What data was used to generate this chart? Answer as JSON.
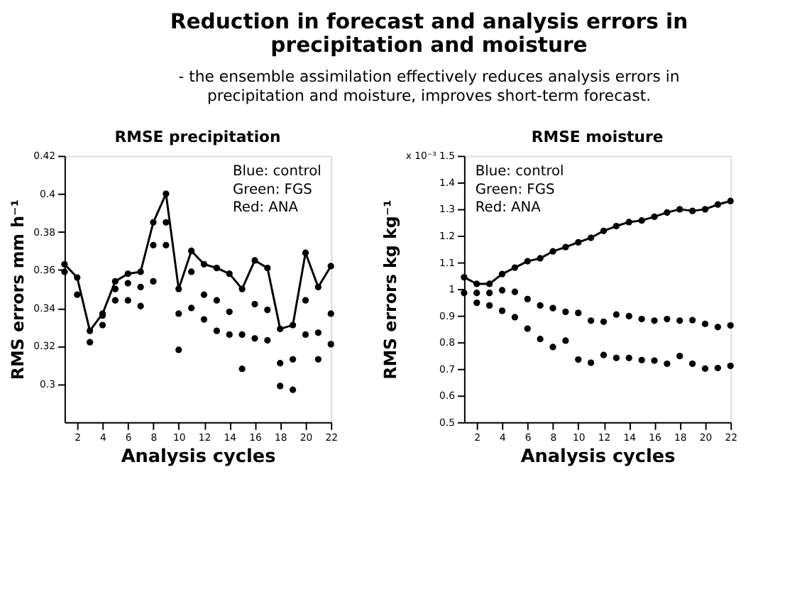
{
  "chart_data": [
    {
      "type": "other",
      "title": "Reduction in forecast and analysis errors in\nprecipitation and moisture",
      "subtitle": "- the ensemble assimilation effectively reduces analysis errors in\nprecipitation  and moisture, improves short-term forecast."
    },
    {
      "type": "scatter",
      "title": "RMSE  precipitation",
      "xlabel": "Analysis cycles",
      "ylabel": "RMS errors mm h⁻¹",
      "annotations": [
        "Blue: control",
        "Green: FGS",
        "Red: ANA"
      ],
      "x": [
        1,
        2,
        3,
        4,
        5,
        6,
        7,
        8,
        9,
        10,
        11,
        12,
        13,
        14,
        15,
        16,
        17,
        18,
        19,
        20,
        21,
        22
      ],
      "xlim": [
        1,
        22
      ],
      "xticks": [
        2,
        4,
        6,
        8,
        10,
        12,
        14,
        16,
        18,
        20,
        22
      ],
      "ylim": [
        0.28,
        0.42
      ],
      "yticks": [
        0.3,
        0.32,
        0.34,
        0.36,
        0.38,
        0.4,
        0.42
      ],
      "marker": "circle",
      "grid": false,
      "series": [
        {
          "type": "line",
          "color": "#000000",
          "values": [
            0.363,
            0.356,
            0.328,
            0.337,
            0.354,
            0.358,
            0.359,
            0.385,
            0.4,
            0.35,
            0.37,
            0.363,
            0.361,
            0.358,
            0.35,
            0.365,
            0.361,
            0.329,
            0.331,
            0.369,
            0.351,
            0.362
          ]
        },
        {
          "color": "#000000",
          "values": [
            0.359,
            0.347,
            0.322,
            0.336,
            0.35,
            0.353,
            0.351,
            0.373,
            0.385,
            0.337,
            0.359,
            0.347,
            0.344,
            0.338,
            0.326,
            0.342,
            0.339,
            0.311,
            0.313,
            0.344,
            0.327,
            0.337
          ]
        },
        {
          "color": "#000000",
          "values": [
            null,
            null,
            null,
            0.331,
            0.344,
            0.344,
            0.341,
            0.354,
            0.373,
            0.318,
            0.34,
            0.334,
            0.328,
            0.326,
            0.308,
            0.324,
            0.323,
            0.299,
            0.297,
            0.326,
            0.313,
            0.321
          ]
        }
      ]
    },
    {
      "type": "scatter",
      "title": "RMSE  moisture",
      "xlabel": "Analysis cycles",
      "ylabel": "RMS errors kg kg⁻¹",
      "annotations": [
        "Blue: control",
        "Green: FGS",
        "Red: ANA"
      ],
      "x": [
        1,
        2,
        3,
        4,
        5,
        6,
        7,
        8,
        9,
        10,
        11,
        12,
        13,
        14,
        15,
        16,
        17,
        18,
        19,
        20,
        21,
        22
      ],
      "xlim": [
        1,
        22
      ],
      "xticks": [
        2,
        4,
        6,
        8,
        10,
        12,
        14,
        16,
        18,
        20,
        22
      ],
      "ylim": [
        0.5,
        1.5
      ],
      "yticks": [
        0.5,
        0.6,
        0.7,
        0.8,
        0.9,
        1,
        1.1,
        1.2,
        1.3,
        1.4,
        {
          "value": 1.5,
          "label": "x 10⁻³ 1.5"
        }
      ],
      "marker": "circle",
      "grid": false,
      "series": [
        {
          "type": "line",
          "color": "#000000",
          "values": [
            1.044,
            1.019,
            1.019,
            1.056,
            1.08,
            1.104,
            1.115,
            1.141,
            1.157,
            1.175,
            1.192,
            1.218,
            1.236,
            1.251,
            1.257,
            1.271,
            1.287,
            1.299,
            1.293,
            1.299,
            1.317,
            1.33
          ]
        },
        {
          "color": "#000000",
          "values": [
            0.985,
            0.985,
            0.985,
            0.995,
            0.989,
            0.962,
            0.938,
            0.928,
            0.914,
            0.91,
            0.881,
            0.877,
            0.904,
            0.898,
            0.887,
            0.881,
            0.887,
            0.881,
            0.883,
            0.869,
            0.857,
            0.863
          ]
        },
        {
          "color": "#000000",
          "values": [
            null,
            0.948,
            0.938,
            0.918,
            0.894,
            0.851,
            0.812,
            0.782,
            0.806,
            0.735,
            0.723,
            0.752,
            0.741,
            0.741,
            0.733,
            0.731,
            0.719,
            0.748,
            0.719,
            0.701,
            0.703,
            0.711
          ]
        }
      ]
    }
  ]
}
